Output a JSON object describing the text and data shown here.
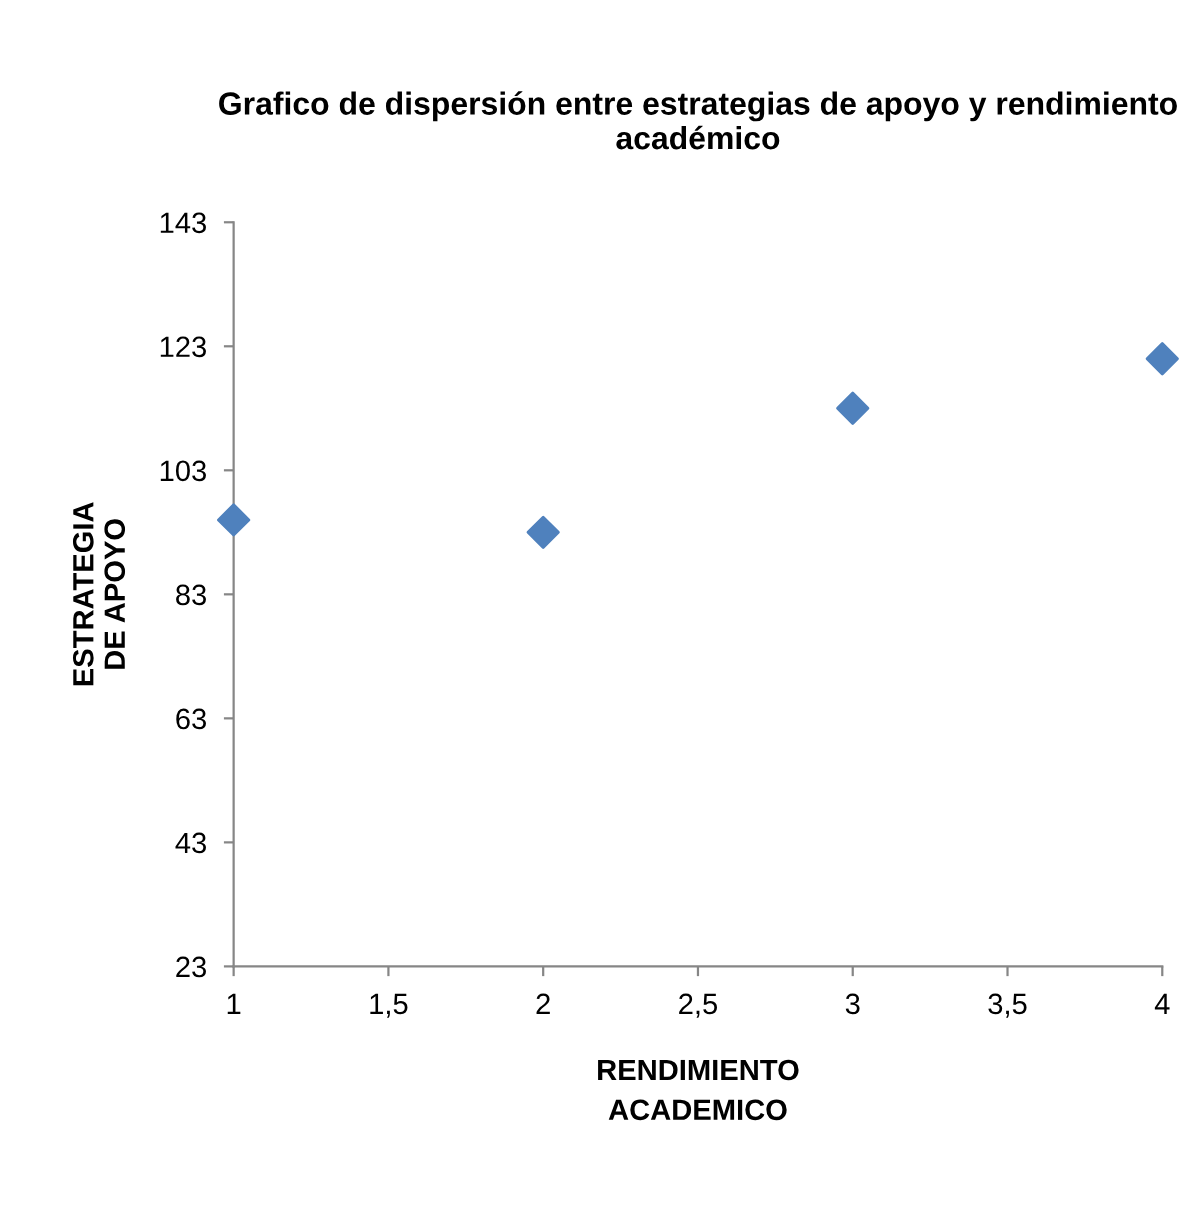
{
  "chart_data": {
    "type": "scatter",
    "title": "Grafico de dispersión entre estrategias de apoyo y rendimiento académico",
    "xlabel": "RENDIMIENTO\nACADEMICO",
    "ylabel": "ESTRATEGIA\nDE APOYO",
    "x": [
      1,
      2,
      3,
      4
    ],
    "series": [
      {
        "color": "#4f81bd",
        "values": [
          95,
          93,
          113,
          121
        ]
      }
    ],
    "xlim": [
      1,
      4
    ],
    "xticks": [
      1,
      {
        "value": 1.5,
        "label": "1,5"
      },
      2,
      {
        "value": 2.5,
        "label": "2,5"
      },
      3,
      {
        "value": 3.5,
        "label": "3,5"
      },
      4
    ],
    "ylim": [
      23,
      143
    ],
    "yticks": [
      23,
      43,
      63,
      83,
      103,
      123,
      143
    ],
    "marker": "diamond",
    "grid": false,
    "legend": false
  }
}
